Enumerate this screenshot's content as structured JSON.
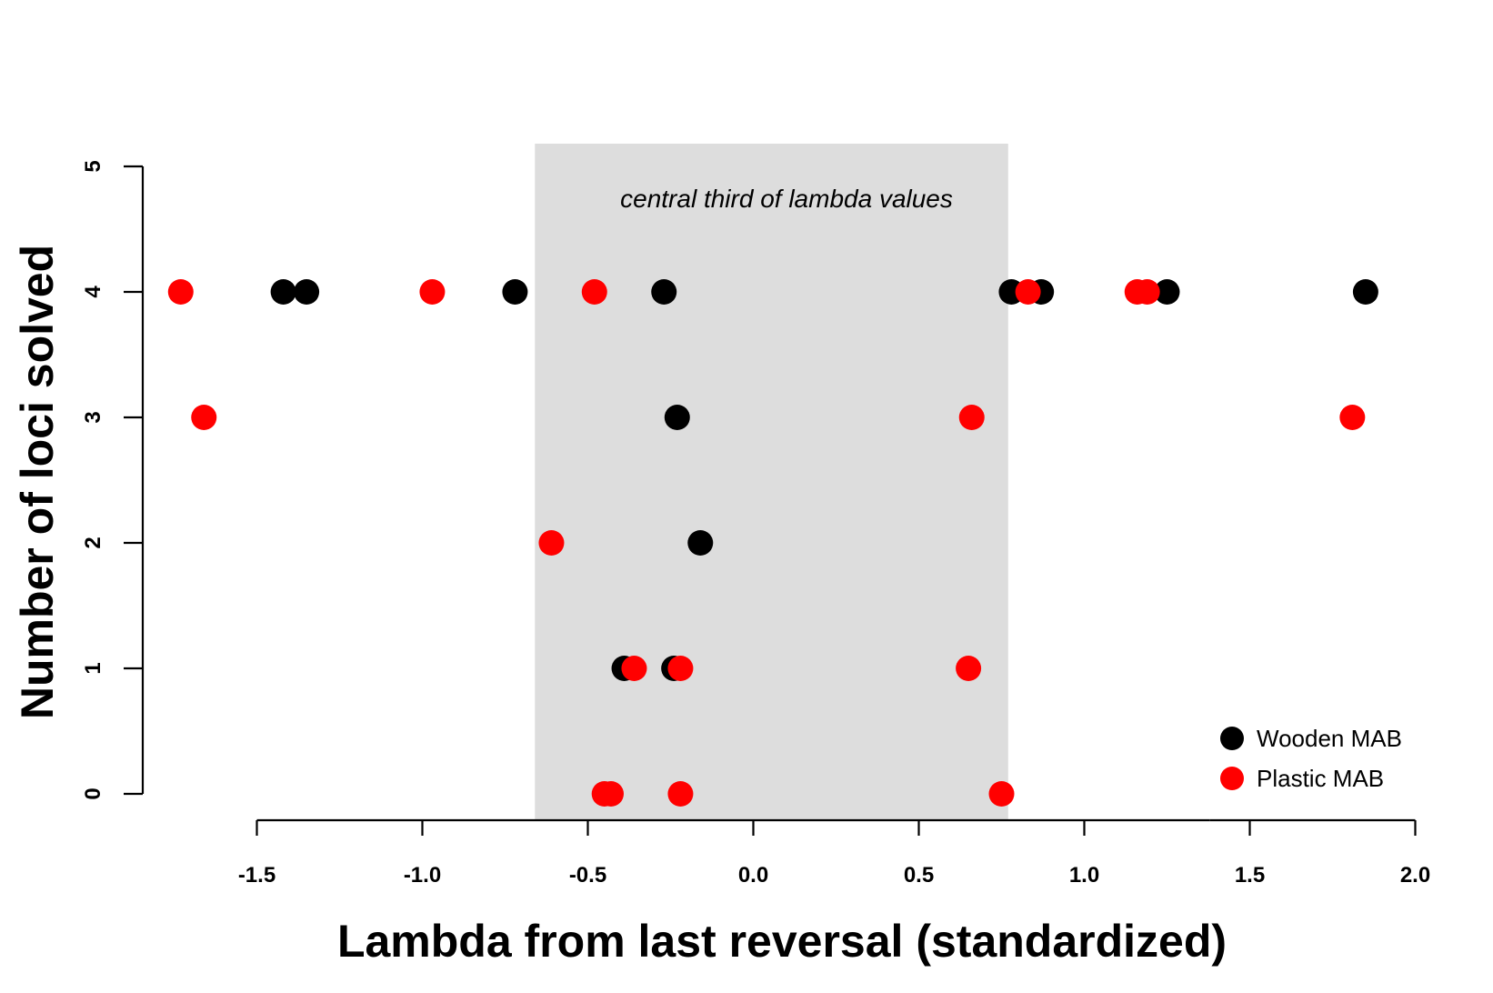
{
  "chart_data": {
    "type": "scatter",
    "title": "",
    "xlabel": "Lambda from last reversal (standardized)",
    "ylabel": "Number of loci solved",
    "xlim": [
      -1.85,
      2.0
    ],
    "ylim": [
      0,
      5
    ],
    "x_ticks": [
      "-1.5",
      "-1.0",
      "-0.5",
      "0.0",
      "0.5",
      "1.0",
      "1.5",
      "2.0"
    ],
    "y_ticks": [
      "0",
      "1",
      "2",
      "3",
      "4",
      "5"
    ],
    "grid": false,
    "legend_position": "bottom-right",
    "shaded_region": {
      "x": [
        -0.66,
        0.77
      ],
      "label": "central third of lambda values",
      "color": "#dddddd"
    },
    "series": [
      {
        "name": "Wooden MAB",
        "color": "#000000",
        "points": [
          {
            "x": -1.42,
            "y": 4
          },
          {
            "x": -1.35,
            "y": 4
          },
          {
            "x": -0.72,
            "y": 4
          },
          {
            "x": -0.27,
            "y": 4
          },
          {
            "x": 0.78,
            "y": 4
          },
          {
            "x": 0.87,
            "y": 4
          },
          {
            "x": 1.25,
            "y": 4
          },
          {
            "x": 1.85,
            "y": 4
          },
          {
            "x": -0.23,
            "y": 3
          },
          {
            "x": -0.16,
            "y": 2
          },
          {
            "x": -0.39,
            "y": 1
          },
          {
            "x": -0.24,
            "y": 1
          }
        ]
      },
      {
        "name": "Plastic MAB",
        "color": "#ff0000",
        "points": [
          {
            "x": -1.73,
            "y": 4
          },
          {
            "x": -0.97,
            "y": 4
          },
          {
            "x": -0.48,
            "y": 4
          },
          {
            "x": 0.83,
            "y": 4
          },
          {
            "x": 1.16,
            "y": 4
          },
          {
            "x": 1.19,
            "y": 4
          },
          {
            "x": -1.66,
            "y": 3
          },
          {
            "x": 0.66,
            "y": 3
          },
          {
            "x": 1.81,
            "y": 3
          },
          {
            "x": -0.61,
            "y": 2
          },
          {
            "x": -0.36,
            "y": 1
          },
          {
            "x": -0.22,
            "y": 1
          },
          {
            "x": 0.65,
            "y": 1
          },
          {
            "x": -0.45,
            "y": 0
          },
          {
            "x": -0.43,
            "y": 0
          },
          {
            "x": -0.22,
            "y": 0
          },
          {
            "x": 0.75,
            "y": 0
          }
        ]
      }
    ]
  }
}
